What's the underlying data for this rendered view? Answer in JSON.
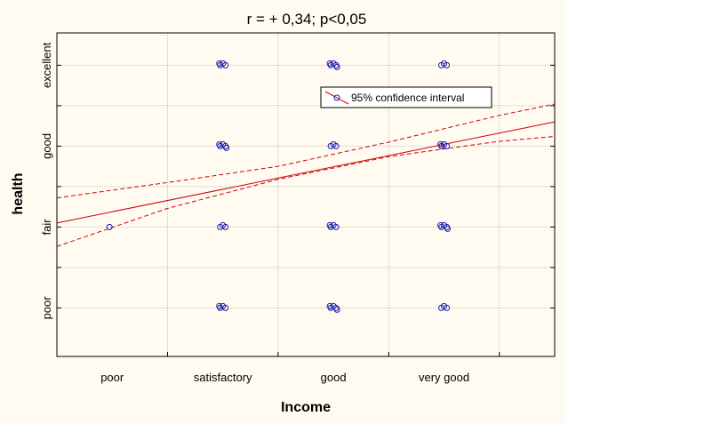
{
  "chart_data": {
    "type": "scatter",
    "title": "r = + 0,34; p<0,05",
    "xlabel": "Income",
    "ylabel": "health",
    "x_categories": [
      "poor",
      "satisfactory",
      "good",
      "very good"
    ],
    "y_tick_labels": [
      {
        "value": 1,
        "label": "poor"
      },
      {
        "value": 2,
        "label": "fair"
      },
      {
        "value": 3,
        "label": "good"
      },
      {
        "value": 4,
        "label": "excellent"
      }
    ],
    "xlim": [
      0.5,
      5.0
    ],
    "ylim": [
      0.4,
      4.4
    ],
    "grid": true,
    "legend": {
      "position": "top-right",
      "label": "95% confidence interval"
    },
    "regression_line": {
      "x": [
        0.5,
        5.0
      ],
      "y": [
        2.05,
        3.3
      ]
    },
    "confidence_upper": {
      "x": [
        0.5,
        1.5,
        2.5,
        3.5,
        4.5,
        5.0
      ],
      "y": [
        2.36,
        2.55,
        2.75,
        3.05,
        3.38,
        3.52
      ]
    },
    "confidence_lower": {
      "x": [
        0.5,
        1.5,
        2.5,
        3.5,
        4.5,
        5.0
      ],
      "y": [
        1.76,
        2.23,
        2.59,
        2.87,
        3.06,
        3.12
      ]
    },
    "points": [
      {
        "x": 1,
        "y": 2
      },
      {
        "x": 2,
        "y": 4
      },
      {
        "x": 2,
        "y": 3
      },
      {
        "x": 2,
        "y": 2
      },
      {
        "x": 2,
        "y": 1
      },
      {
        "x": 3,
        "y": 4
      },
      {
        "x": 3,
        "y": 3
      },
      {
        "x": 3,
        "y": 2
      },
      {
        "x": 3,
        "y": 1
      },
      {
        "x": 4,
        "y": 4
      },
      {
        "x": 4,
        "y": 3
      },
      {
        "x": 4,
        "y": 2
      },
      {
        "x": 4,
        "y": 1
      }
    ],
    "colors": {
      "line": "#cc0000",
      "points": "#1a1aaa",
      "grid": "#a8a8a8",
      "axis": "#000000"
    }
  }
}
